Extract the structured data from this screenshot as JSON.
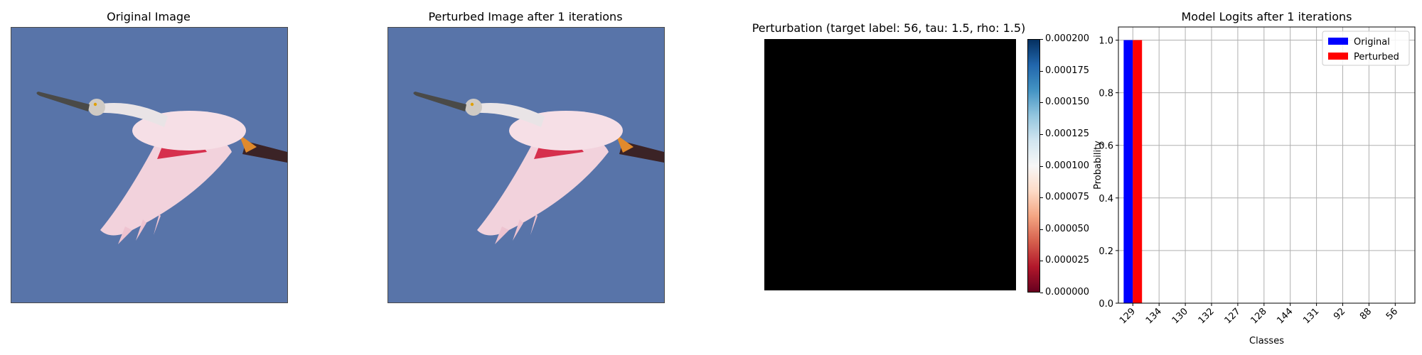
{
  "panels": {
    "original": {
      "title": "Original Image"
    },
    "perturbed": {
      "title": "Perturbed Image after 1 iterations"
    },
    "perturbation": {
      "title": "Perturbation (target label: 56, tau: 1.5, rho: 1.5)",
      "colorbar": {
        "min": 0.0,
        "max": 0.0002,
        "colormap": [
          "#67001f",
          "#b2182b",
          "#d6604d",
          "#f4a582",
          "#fddbc7",
          "#f7f7f7",
          "#d1e5f0",
          "#92c5de",
          "#4393c3",
          "#2166ac",
          "#053061"
        ],
        "ticks": [
          "0.000000",
          "0.000025",
          "0.000050",
          "0.000075",
          "0.000100",
          "0.000125",
          "0.000150",
          "0.000175",
          "0.000200"
        ]
      },
      "fill_color": "#000000"
    }
  },
  "chart_data": {
    "type": "bar",
    "title": "Model Logits after 1 iterations",
    "xlabel": "Classes",
    "ylabel": "Probability",
    "categories": [
      "129",
      "134",
      "130",
      "132",
      "127",
      "128",
      "144",
      "131",
      "92",
      "88",
      "56"
    ],
    "series": [
      {
        "name": "Original",
        "color": "#0000ff",
        "values": [
          1.0,
          0,
          0,
          0,
          0,
          0,
          0,
          0,
          0,
          0,
          0
        ]
      },
      {
        "name": "Perturbed",
        "color": "#ff0000",
        "values": [
          1.0,
          0,
          0,
          0,
          0,
          0,
          0,
          0,
          0,
          0,
          0
        ]
      }
    ],
    "ylim": [
      0,
      1.05
    ],
    "yticks": [
      "0.0",
      "0.2",
      "0.4",
      "0.6",
      "0.8",
      "1.0"
    ],
    "grid": true,
    "legend_position": "top-right"
  }
}
